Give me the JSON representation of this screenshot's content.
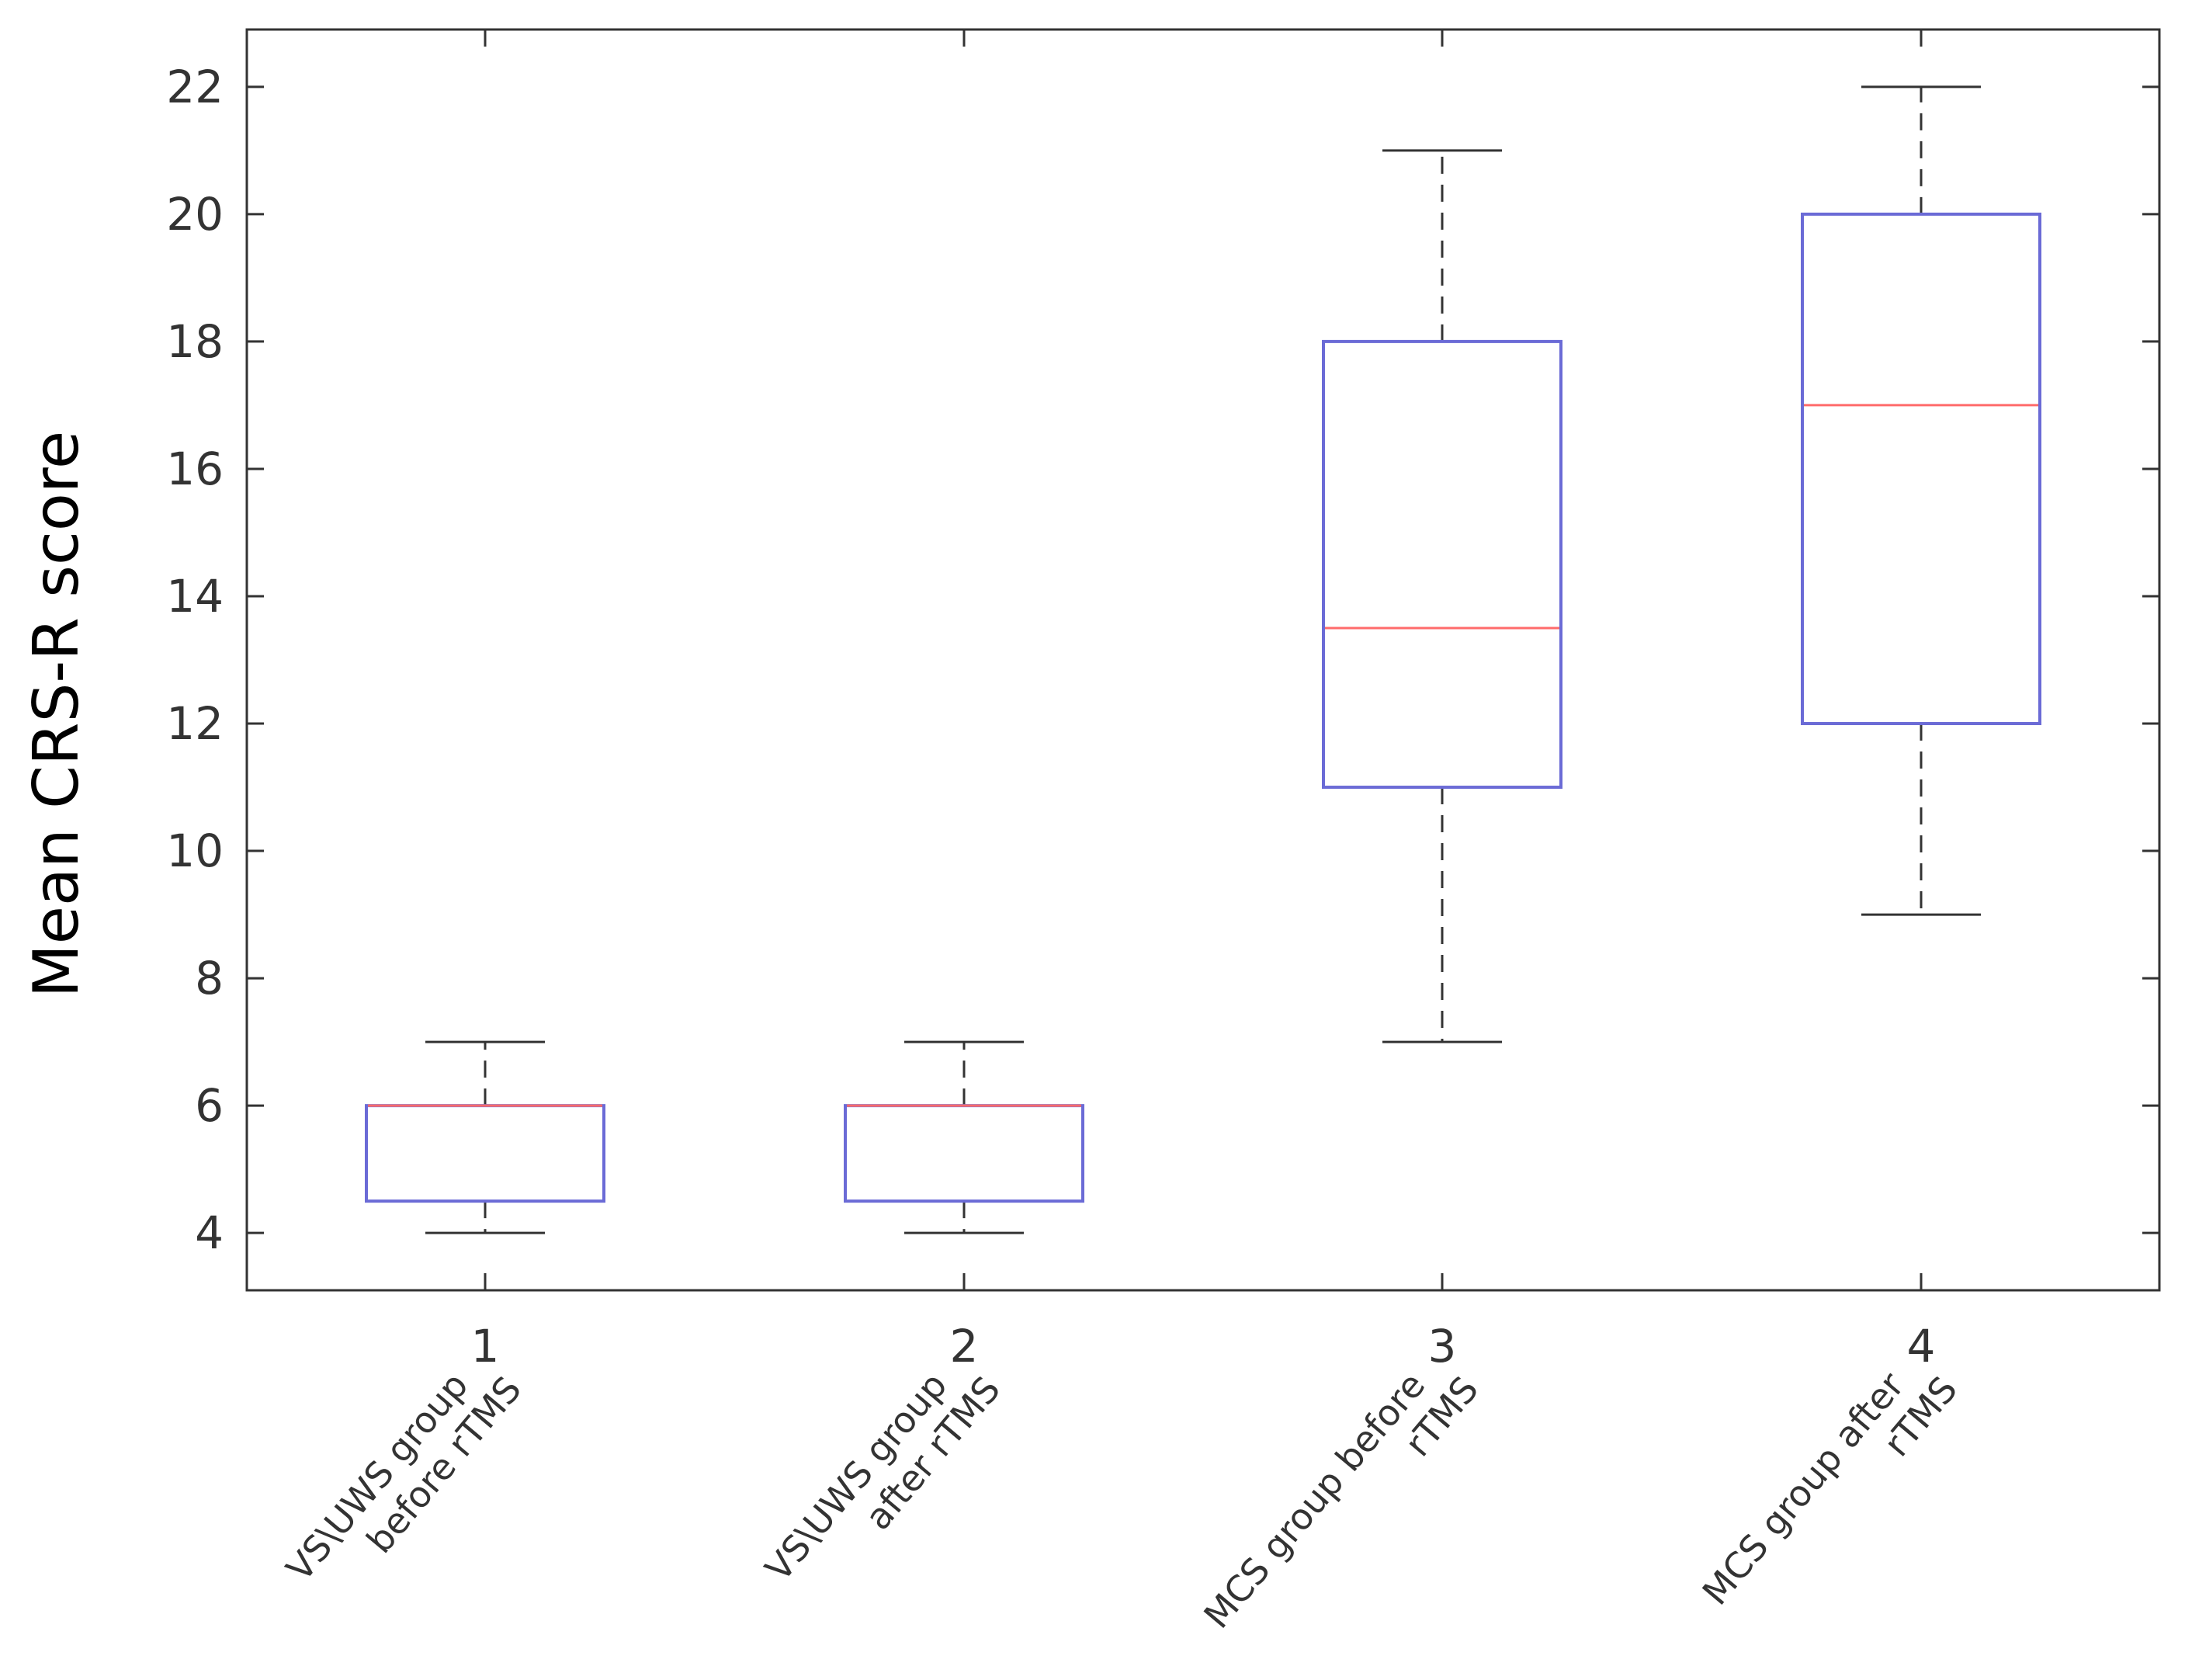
{
  "chart_data": {
    "type": "boxplot",
    "title": "",
    "xlabel": "",
    "ylabel": "Mean CRS-R score",
    "ylim": [
      3.1,
      22.9
    ],
    "yticks": [
      4,
      6,
      8,
      10,
      12,
      14,
      16,
      18,
      20,
      22
    ],
    "grid": false,
    "categories": [
      "1",
      "2",
      "3",
      "4"
    ],
    "group_labels": [
      [
        "VS\\UWS group",
        "before rTMS"
      ],
      [
        "VS\\UWS group",
        "after rTMS"
      ],
      [
        "MCS group before",
        "rTMS"
      ],
      [
        "MCS group after",
        "rTMS"
      ]
    ],
    "boxes": [
      {
        "category": "1",
        "min": 4,
        "q1": 4.5,
        "median": 6,
        "q3": 6,
        "max": 7
      },
      {
        "category": "2",
        "min": 4,
        "q1": 4.5,
        "median": 6,
        "q3": 6,
        "max": 7
      },
      {
        "category": "3",
        "min": 7,
        "q1": 11,
        "median": 13.5,
        "q3": 18,
        "max": 21
      },
      {
        "category": "4",
        "min": 9,
        "q1": 12,
        "median": 17,
        "q3": 20,
        "max": 22
      }
    ],
    "colors": {
      "box": "#6b6bd6",
      "median": "#ff6b6b",
      "whisker": "#333333",
      "axis": "#333333"
    }
  }
}
